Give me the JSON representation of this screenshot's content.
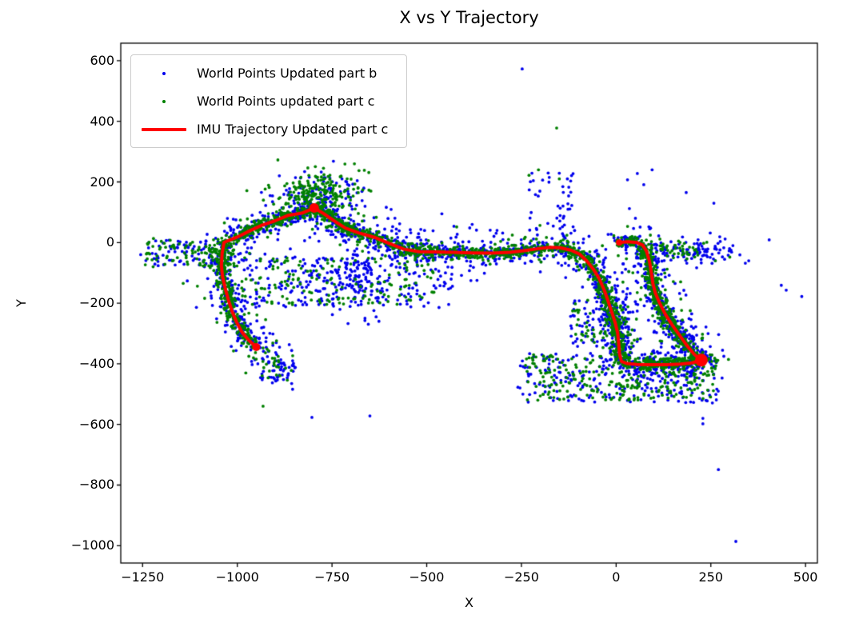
{
  "chart_data": {
    "type": "scatter",
    "title": "X vs Y Trajectory",
    "xlabel": "X",
    "ylabel": "Y",
    "xlim": [
      -1307.6,
      531.3
    ],
    "ylim": [
      -1057.3,
      657.8
    ],
    "grid": false,
    "legend_position": "upper left",
    "seed": 1337,
    "axis_color": "#000000",
    "xticks": [
      {
        "v": -1250,
        "label": "−1250"
      },
      {
        "v": -1000,
        "label": "−1000"
      },
      {
        "v": -750,
        "label": "−750"
      },
      {
        "v": -500,
        "label": "−500"
      },
      {
        "v": -250,
        "label": "−250"
      },
      {
        "v": 0,
        "label": "0"
      },
      {
        "v": 250,
        "label": "250"
      },
      {
        "v": 500,
        "label": "500"
      }
    ],
    "yticks": [
      {
        "v": 600,
        "label": "600"
      },
      {
        "v": 400,
        "label": "400"
      },
      {
        "v": 200,
        "label": "200"
      },
      {
        "v": 0,
        "label": "0"
      },
      {
        "v": -200,
        "label": "−200"
      },
      {
        "v": -400,
        "label": "−400"
      },
      {
        "v": -600,
        "label": "−600"
      },
      {
        "v": -800,
        "label": "−800"
      },
      {
        "v": -1000,
        "label": "−1000"
      }
    ],
    "series": [
      {
        "name": "World Points Updated part b",
        "type": "scatter",
        "color": "#0000ee",
        "marker_radius": 1.9,
        "generation": {
          "path_core": {
            "count": 1250,
            "sigma": 13
          },
          "path_halo": {
            "count": 620,
            "sigma": 48
          },
          "clusters": [
            {
              "type": "uniform",
              "x": [
                -990,
                -430
              ],
              "y": [
                -215,
                -45
              ],
              "count": 230
            },
            {
              "type": "uniform",
              "x": [
                -260,
                270
              ],
              "y": [
                -530,
                -365
              ],
              "count": 240
            },
            {
              "type": "uniform",
              "x": [
                -1245,
                -1060
              ],
              "y": [
                -85,
                10
              ],
              "count": 60
            },
            {
              "type": "uniform",
              "x": [
                -230,
                -110
              ],
              "y": [
                20,
                230
              ],
              "count": 40
            },
            {
              "type": "uniform",
              "x": [
                -120,
                60
              ],
              "y": [
                -345,
                -180
              ],
              "count": 75
            },
            {
              "type": "gauss",
              "cx": -780,
              "cy": 150,
              "sx": 60,
              "sy": 45,
              "count": 120
            },
            {
              "type": "gauss",
              "cx": -680,
              "cy": -120,
              "sx": 45,
              "sy": 65,
              "count": 100
            },
            {
              "type": "gauss",
              "cx": 200,
              "cy": -30,
              "sx": 60,
              "sy": 22,
              "count": 90
            },
            {
              "type": "gauss",
              "cx": -895,
              "cy": -410,
              "sx": 28,
              "sy": 30,
              "count": 60
            }
          ],
          "outliers": [
            [
              -248,
              573
            ],
            [
              30,
              207
            ],
            [
              56,
              228
            ],
            [
              73,
              191
            ],
            [
              404,
              9
            ],
            [
              436,
              -141
            ],
            [
              449,
              -157
            ],
            [
              229,
              -580
            ],
            [
              229,
              -598
            ],
            [
              270,
              -749
            ],
            [
              316,
              -986
            ],
            [
              -803,
              -577
            ],
            [
              -854,
              -484
            ],
            [
              -650,
              -572
            ],
            [
              350,
              -60
            ],
            [
              490,
              -178
            ],
            [
              -1255,
              -40
            ],
            [
              258,
              130
            ],
            [
              185,
              165
            ],
            [
              95,
              240
            ],
            [
              -460,
              95
            ],
            [
              -380,
              60
            ]
          ]
        }
      },
      {
        "name": "World Points updated part c",
        "type": "scatter",
        "color": "#008000",
        "marker_radius": 1.9,
        "generation": {
          "path_core": {
            "count": 1950,
            "sigma": 9
          },
          "path_halo": {
            "count": 360,
            "sigma": 30
          },
          "clusters": [
            {
              "type": "uniform",
              "x": [
                -990,
                -480
              ],
              "y": [
                -205,
                -50
              ],
              "count": 150
            },
            {
              "type": "uniform",
              "x": [
                -240,
                270
              ],
              "y": [
                -520,
                -370
              ],
              "count": 270
            },
            {
              "type": "uniform",
              "x": [
                -1245,
                -1060
              ],
              "y": [
                -80,
                15
              ],
              "count": 70
            },
            {
              "type": "uniform",
              "x": [
                -115,
                55
              ],
              "y": [
                -340,
                -190
              ],
              "count": 60
            },
            {
              "type": "gauss",
              "cx": -790,
              "cy": 155,
              "sx": 55,
              "sy": 40,
              "count": 210
            },
            {
              "type": "gauss",
              "cx": 150,
              "cy": -20,
              "sx": 45,
              "sy": 16,
              "count": 45
            },
            {
              "type": "gauss",
              "cx": -900,
              "cy": -400,
              "sx": 25,
              "sy": 25,
              "count": 30
            }
          ],
          "outliers": [
            [
              -157,
              378
            ],
            [
              -932,
              -540
            ],
            [
              -630,
              -160
            ],
            [
              -621,
              -166
            ],
            [
              -612,
              -172
            ],
            [
              -601,
              -178
            ],
            [
              -230,
              222
            ],
            [
              -205,
              240
            ],
            [
              262,
              -60
            ],
            [
              300,
              -48
            ],
            [
              -1225,
              -57
            ],
            [
              -150,
              210
            ]
          ]
        }
      },
      {
        "name": "IMU Trajectory Updated part c",
        "type": "line",
        "color": "#ff0000",
        "linewidth": 4,
        "points": [
          [
            8,
            0
          ],
          [
            30,
            3
          ],
          [
            55,
            0
          ],
          [
            70,
            -8
          ],
          [
            80,
            -28
          ],
          [
            88,
            -62
          ],
          [
            93,
            -100
          ],
          [
            97,
            -135
          ],
          [
            104,
            -168
          ],
          [
            115,
            -200
          ],
          [
            130,
            -237
          ],
          [
            148,
            -272
          ],
          [
            168,
            -307
          ],
          [
            190,
            -345
          ],
          [
            207,
            -370
          ],
          [
            225,
            -388
          ],
          [
            200,
            -397
          ],
          [
            170,
            -401
          ],
          [
            135,
            -403
          ],
          [
            95,
            -403
          ],
          [
            55,
            -402
          ],
          [
            28,
            -399
          ],
          [
            14,
            -392
          ],
          [
            9,
            -368
          ],
          [
            7,
            -335
          ],
          [
            4,
            -298
          ],
          [
            -3,
            -262
          ],
          [
            -12,
            -228
          ],
          [
            -22,
            -190
          ],
          [
            -32,
            -155
          ],
          [
            -45,
            -118
          ],
          [
            -60,
            -88
          ],
          [
            -78,
            -60
          ],
          [
            -98,
            -37
          ],
          [
            -120,
            -25
          ],
          [
            -148,
            -17
          ],
          [
            -175,
            -16
          ],
          [
            -205,
            -20
          ],
          [
            -240,
            -26
          ],
          [
            -280,
            -32
          ],
          [
            -330,
            -35
          ],
          [
            -380,
            -34
          ],
          [
            -430,
            -32
          ],
          [
            -480,
            -31
          ],
          [
            -520,
            -30
          ],
          [
            -560,
            -22
          ],
          [
            -600,
            -2
          ],
          [
            -640,
            18
          ],
          [
            -680,
            32
          ],
          [
            -715,
            48
          ],
          [
            -745,
            72
          ],
          [
            -775,
            98
          ],
          [
            -797,
            114
          ],
          [
            -830,
            97
          ],
          [
            -865,
            90
          ],
          [
            -900,
            72
          ],
          [
            -935,
            57
          ],
          [
            -965,
            40
          ],
          [
            -1000,
            18
          ],
          [
            -1025,
            6
          ],
          [
            -1035,
            0
          ],
          [
            -1040,
            -35
          ],
          [
            -1042,
            -75
          ],
          [
            -1039,
            -112
          ],
          [
            -1032,
            -150
          ],
          [
            -1024,
            -188
          ],
          [
            -1014,
            -226
          ],
          [
            -1002,
            -262
          ],
          [
            -988,
            -295
          ],
          [
            -970,
            -322
          ],
          [
            -950,
            -345
          ]
        ],
        "blob_markers": [
          {
            "x": 225,
            "y": -388,
            "r": 8
          },
          {
            "x": -797,
            "y": 114,
            "r": 6
          },
          {
            "x": -950,
            "y": -345,
            "r": 5
          },
          {
            "x": 8,
            "y": 0,
            "r": 4
          }
        ]
      }
    ]
  }
}
